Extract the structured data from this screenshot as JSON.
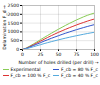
{
  "chart_data": {
    "type": "line",
    "xlabel": "Number of holes drilled (per drill)",
    "ylabel": "Delamination F_d",
    "x": [
      0,
      5,
      10,
      15,
      20,
      25,
      30,
      35,
      40,
      45,
      50,
      55,
      60,
      65,
      70,
      75,
      80,
      85,
      90,
      95,
      100
    ],
    "series": [
      {
        "name": "Experimental",
        "color": "#88cc55",
        "values": [
          0,
          80,
          190,
          310,
          430,
          560,
          680,
          800,
          920,
          1040,
          1155,
          1265,
          1375,
          1480,
          1580,
          1680,
          1770,
          1860,
          1940,
          2010,
          2070
        ]
      },
      {
        "name": "F_cb = 100 % F_c",
        "color": "#dd3333",
        "values": [
          0,
          65,
          160,
          265,
          370,
          475,
          580,
          685,
          785,
          880,
          975,
          1065,
          1150,
          1235,
          1315,
          1395,
          1470,
          1540,
          1610,
          1675,
          1735
        ]
      },
      {
        "name": "F_cb = 80 % F_c",
        "color": "#3355cc",
        "values": [
          0,
          55,
          135,
          220,
          305,
          390,
          475,
          555,
          635,
          710,
          785,
          858,
          928,
          996,
          1062,
          1126,
          1188,
          1248,
          1306,
          1362,
          1415
        ]
      },
      {
        "name": "F_cb = 40 % F_c",
        "color": "#55aadd",
        "values": [
          0,
          40,
          95,
          155,
          215,
          275,
          335,
          390,
          445,
          498,
          550,
          600,
          648,
          695,
          740,
          784,
          826,
          867,
          906,
          944,
          980
        ]
      }
    ],
    "xlim": [
      0,
      100
    ],
    "ylim": [
      0,
      2500
    ],
    "xticks": [
      0,
      25,
      50,
      75,
      100
    ],
    "yticks": [
      0,
      500,
      1000,
      1500,
      2000,
      2500
    ],
    "grid": true
  }
}
